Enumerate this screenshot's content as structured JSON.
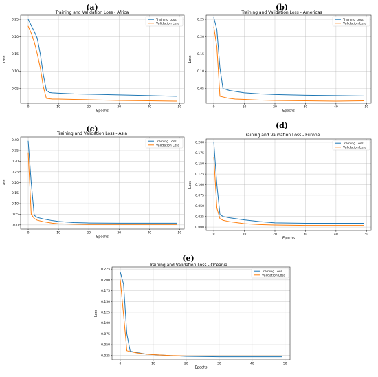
{
  "colors": {
    "training": "#1f77b4",
    "validation": "#ff7f0e"
  },
  "chart_data": [
    {
      "panel": "(a)",
      "type": "line",
      "title": "Training and Validation Loss - Africa",
      "xlabel": "Epochs",
      "ylabel": "Loss",
      "xlim": [
        -2.5,
        51.5
      ],
      "ylim": [
        0.008,
        0.262
      ],
      "xticks": [
        0,
        10,
        20,
        30,
        40,
        50
      ],
      "yticks": [
        0.05,
        0.1,
        0.15,
        0.2,
        0.25
      ],
      "ytick_labels": [
        "0.05",
        "0.10",
        "0.15",
        "0.20",
        "0.25"
      ],
      "grid": true,
      "legend": "top-right",
      "series": [
        {
          "name": "Training Loss",
          "x": [
            0,
            1,
            2,
            3,
            4,
            5,
            6,
            7,
            8,
            10,
            15,
            20,
            30,
            40,
            49
          ],
          "y": [
            0.25,
            0.232,
            0.215,
            0.195,
            0.15,
            0.09,
            0.045,
            0.039,
            0.038,
            0.037,
            0.035,
            0.034,
            0.032,
            0.03,
            0.028
          ]
        },
        {
          "name": "Validation Loss",
          "x": [
            0,
            1,
            2,
            3,
            4,
            5,
            6,
            7,
            8,
            10,
            15,
            20,
            30,
            40,
            49
          ],
          "y": [
            0.23,
            0.21,
            0.185,
            0.15,
            0.11,
            0.055,
            0.022,
            0.021,
            0.02,
            0.02,
            0.019,
            0.018,
            0.016,
            0.015,
            0.014
          ]
        }
      ]
    },
    {
      "panel": "(b)",
      "type": "line",
      "title": "Training and Validation Loss - Americas",
      "xlabel": "Epochs",
      "ylabel": "Loss",
      "xlim": [
        -2.5,
        51.5
      ],
      "ylim": [
        0.008,
        0.262
      ],
      "xticks": [
        0,
        10,
        20,
        30,
        40,
        50
      ],
      "yticks": [
        0.05,
        0.1,
        0.15,
        0.2,
        0.25
      ],
      "ytick_labels": [
        "0.05",
        "0.10",
        "0.15",
        "0.20",
        "0.25"
      ],
      "grid": true,
      "legend": "top-right",
      "series": [
        {
          "name": "Training Loss",
          "x": [
            0,
            1,
            2,
            3,
            4,
            5,
            7,
            10,
            15,
            20,
            30,
            40,
            49
          ],
          "y": [
            0.255,
            0.22,
            0.11,
            0.05,
            0.048,
            0.045,
            0.042,
            0.038,
            0.035,
            0.033,
            0.031,
            0.03,
            0.029
          ]
        },
        {
          "name": "Validation Loss",
          "x": [
            0,
            1,
            2,
            3,
            4,
            5,
            7,
            10,
            15,
            20,
            30,
            40,
            49
          ],
          "y": [
            0.228,
            0.17,
            0.028,
            0.026,
            0.024,
            0.022,
            0.02,
            0.019,
            0.017,
            0.016,
            0.015,
            0.014,
            0.015
          ]
        }
      ]
    },
    {
      "panel": "(c)",
      "type": "line",
      "title": "Training and Validation Loss - Asia",
      "xlabel": "Epochs",
      "ylabel": "Loss",
      "xlim": [
        -2.5,
        51.5
      ],
      "ylim": [
        -0.02,
        0.415
      ],
      "xticks": [
        0,
        10,
        20,
        30,
        40,
        50
      ],
      "yticks": [
        0.0,
        0.05,
        0.1,
        0.15,
        0.2,
        0.25,
        0.3,
        0.35,
        0.4
      ],
      "ytick_labels": [
        "0.00",
        "0.05",
        "0.10",
        "0.15",
        "0.20",
        "0.25",
        "0.30",
        "0.35",
        "0.40"
      ],
      "grid": true,
      "legend": "top-right",
      "series": [
        {
          "name": "Training Loss",
          "x": [
            0,
            1,
            2,
            3,
            5,
            8,
            10,
            15,
            20,
            30,
            40,
            49
          ],
          "y": [
            0.395,
            0.2,
            0.045,
            0.035,
            0.028,
            0.02,
            0.016,
            0.011,
            0.009,
            0.008,
            0.008,
            0.008
          ]
        },
        {
          "name": "Validation Loss",
          "x": [
            0,
            1,
            2,
            3,
            5,
            8,
            10,
            15,
            20,
            30,
            40,
            49
          ],
          "y": [
            0.34,
            0.05,
            0.03,
            0.022,
            0.015,
            0.008,
            0.005,
            0.003,
            0.002,
            0.002,
            0.002,
            0.002
          ]
        }
      ]
    },
    {
      "panel": "(d)",
      "type": "line",
      "title": "Training and Validation Loss - Europe",
      "xlabel": "Epochs",
      "ylabel": "Loss",
      "xlim": [
        -2.5,
        51.5
      ],
      "ylim": [
        -0.008,
        0.208
      ],
      "xticks": [
        0,
        10,
        20,
        30,
        40,
        50
      ],
      "yticks": [
        0.0,
        0.025,
        0.05,
        0.075,
        0.1,
        0.125,
        0.15,
        0.175,
        0.2
      ],
      "ytick_labels": [
        "0.000",
        "0.025",
        "0.050",
        "0.075",
        "0.100",
        "0.125",
        "0.150",
        "0.175",
        "0.200"
      ],
      "grid": true,
      "legend": "top-right",
      "series": [
        {
          "name": "Training Loss",
          "x": [
            0,
            1,
            2,
            3,
            5,
            8,
            10,
            15,
            20,
            30,
            40,
            49
          ],
          "y": [
            0.2,
            0.1,
            0.03,
            0.025,
            0.022,
            0.019,
            0.017,
            0.013,
            0.01,
            0.009,
            0.009,
            0.009
          ]
        },
        {
          "name": "Validation Loss",
          "x": [
            0,
            1,
            2,
            3,
            5,
            8,
            10,
            15,
            20,
            30,
            40,
            49
          ],
          "y": [
            0.165,
            0.045,
            0.02,
            0.016,
            0.013,
            0.01,
            0.008,
            0.006,
            0.005,
            0.004,
            0.004,
            0.004
          ]
        }
      ]
    },
    {
      "panel": "(e)",
      "type": "line",
      "title": "Training and Validation Loss - Oceania",
      "xlabel": "Epochs",
      "ylabel": "Loss",
      "xlim": [
        -2.5,
        51.5
      ],
      "ylim": [
        0.015,
        0.23
      ],
      "xticks": [
        0,
        10,
        20,
        30,
        40,
        50
      ],
      "yticks": [
        0.025,
        0.05,
        0.075,
        0.1,
        0.125,
        0.15,
        0.175,
        0.2,
        0.225
      ],
      "ytick_labels": [
        "0.025",
        "0.050",
        "0.075",
        "0.100",
        "0.125",
        "0.150",
        "0.175",
        "0.200",
        "0.225"
      ],
      "grid": true,
      "legend": "top-right",
      "series": [
        {
          "name": "Training Loss",
          "x": [
            0,
            1,
            2,
            3,
            5,
            8,
            10,
            15,
            20,
            30,
            40,
            49
          ],
          "y": [
            0.218,
            0.19,
            0.075,
            0.035,
            0.032,
            0.028,
            0.027,
            0.025,
            0.023,
            0.022,
            0.022,
            0.022
          ]
        },
        {
          "name": "Validation Loss",
          "x": [
            0,
            1,
            2,
            3,
            5,
            8,
            10,
            15,
            20,
            30,
            40,
            49
          ],
          "y": [
            0.2,
            0.12,
            0.036,
            0.034,
            0.031,
            0.028,
            0.027,
            0.025,
            0.024,
            0.024,
            0.024,
            0.024
          ]
        }
      ]
    }
  ]
}
